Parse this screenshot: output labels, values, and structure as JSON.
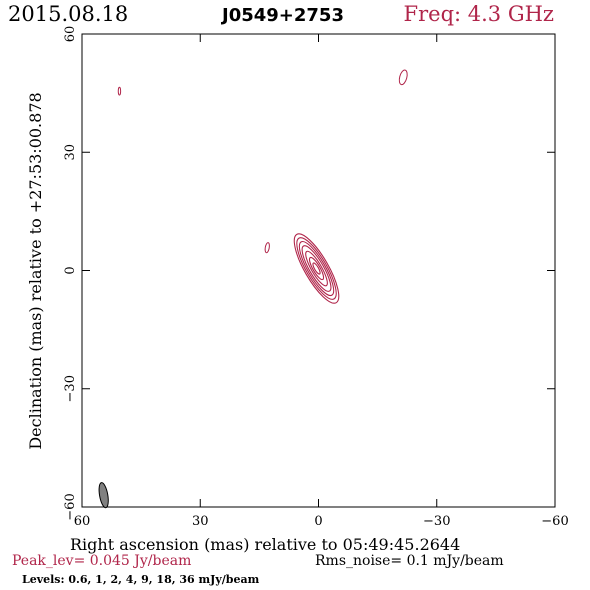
{
  "header": {
    "date": "2015.08.18",
    "source": "J0549+2753",
    "freq": "Freq: 4.3 GHz"
  },
  "footer": {
    "peak": "Peak_lev=  0.045 Jy/beam",
    "rms": "Rms_noise=   0.1 mJy/beam",
    "levels": "Levels: 0.6,    1,    2,    4,    9,   18,   36 mJy/beam"
  },
  "colors": {
    "contour": "#b0254a",
    "beam": "#808080",
    "axis": "#000000"
  },
  "chart_data": {
    "type": "contour",
    "title": "J0549+2753",
    "xlabel": "Right ascension (mas) relative to 05:49:45.2644",
    "ylabel": "Declination (mas) relative to +27:53:00.878",
    "xlim": [
      60,
      -60
    ],
    "ylim": [
      -60,
      60
    ],
    "xticks": [
      60,
      30,
      0,
      -30,
      -60
    ],
    "yticks": [
      -60,
      -30,
      0,
      30,
      60
    ],
    "xtick_labels": [
      "60",
      "30",
      "0",
      "−30",
      "−60"
    ],
    "ytick_labels": [
      "−60",
      "−30",
      "0",
      "30",
      "60"
    ],
    "levels_mJy": [
      0.6,
      1,
      2,
      4,
      9,
      18,
      36
    ],
    "peak_Jy_per_beam": 0.045,
    "rms_mJy_per_beam": 0.1,
    "main_component": {
      "center": [
        0.5,
        0.5
      ],
      "angle_deg": -30,
      "contours": [
        {
          "a": 3.0,
          "b": 10.0
        },
        {
          "a": 2.6,
          "b": 8.9
        },
        {
          "a": 2.2,
          "b": 7.8
        },
        {
          "a": 1.8,
          "b": 6.6
        },
        {
          "a": 1.3,
          "b": 5.0
        },
        {
          "a": 0.9,
          "b": 3.2
        },
        {
          "a": 0.5,
          "b": 1.6
        }
      ]
    },
    "small_components": [
      {
        "x": 50.5,
        "y": 45.5,
        "a": 0.3,
        "b": 1.0,
        "angle_deg": 0
      },
      {
        "x": -21.5,
        "y": 49.0,
        "a": 0.9,
        "b": 1.9,
        "angle_deg": 15
      },
      {
        "x": 13.0,
        "y": 5.8,
        "a": 0.5,
        "b": 1.3,
        "angle_deg": 10
      }
    ],
    "beam": {
      "x": 54.5,
      "y": -57.0,
      "major": 2.3,
      "minor": 0.8,
      "angle_deg": -10
    }
  }
}
